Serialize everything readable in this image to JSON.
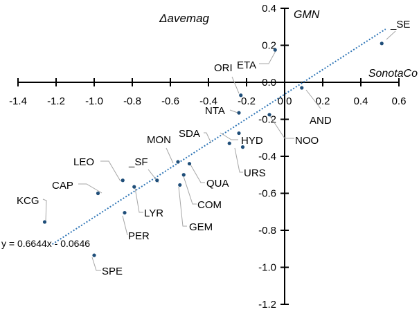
{
  "chart_data": {
    "type": "scatter",
    "title": "Δavemag",
    "xlabel": "SonotaCo",
    "ylabel": "GMN",
    "xlim": [
      -1.4,
      0.6
    ],
    "ylim": [
      -1.2,
      0.4
    ],
    "xticks": [
      "-1.4",
      "-1.2",
      "-1.0",
      "-0.8",
      "-0.6",
      "-0.4",
      "-0.2",
      "0.0",
      "0.2",
      "0.4",
      "0.6"
    ],
    "yticks": [
      "0.4",
      "0.2",
      "0.0",
      "-0.2",
      "-0.4",
      "-0.6",
      "-0.8",
      "-1.0",
      "-1.2"
    ],
    "legend": "none",
    "grid": false,
    "colors": {
      "point": "#1f4e79",
      "trendline": "#2e75b6",
      "leader": "#a6a6a6"
    },
    "points": [
      {
        "name": "_SE",
        "x": 0.51,
        "y": 0.21
      },
      {
        "name": "ETA",
        "x": -0.05,
        "y": 0.175
      },
      {
        "name": "ORI",
        "x": -0.23,
        "y": -0.07
      },
      {
        "name": "AND",
        "x": 0.09,
        "y": -0.03
      },
      {
        "name": "NTA",
        "x": -0.24,
        "y": -0.165
      },
      {
        "name": "NOO",
        "x": -0.08,
        "y": -0.175
      },
      {
        "name": "HYD",
        "x": -0.24,
        "y": -0.275
      },
      {
        "name": "SDA",
        "x": -0.29,
        "y": -0.33
      },
      {
        "name": "URS",
        "x": -0.22,
        "y": -0.35
      },
      {
        "name": "MON",
        "x": -0.56,
        "y": -0.43
      },
      {
        "name": "QUA",
        "x": -0.5,
        "y": -0.44
      },
      {
        "name": "_SF",
        "x": -0.67,
        "y": -0.53
      },
      {
        "name": "COM",
        "x": -0.53,
        "y": -0.5
      },
      {
        "name": "GEM",
        "x": -0.55,
        "y": -0.555
      },
      {
        "name": "LEO",
        "x": -0.85,
        "y": -0.53
      },
      {
        "name": "LYR",
        "x": -0.79,
        "y": -0.565
      },
      {
        "name": "CAP",
        "x": -0.98,
        "y": -0.6
      },
      {
        "name": "PER",
        "x": -0.84,
        "y": -0.705
      },
      {
        "name": "KCG",
        "x": -1.26,
        "y": -0.755
      },
      {
        "name": "SPE",
        "x": -1.0,
        "y": -0.935
      }
    ],
    "trendline": {
      "equation": "y = 0.6644x - 0.0646",
      "slope": 0.6644,
      "intercept": -0.0646,
      "x_range": [
        -1.22,
        0.53
      ]
    }
  }
}
